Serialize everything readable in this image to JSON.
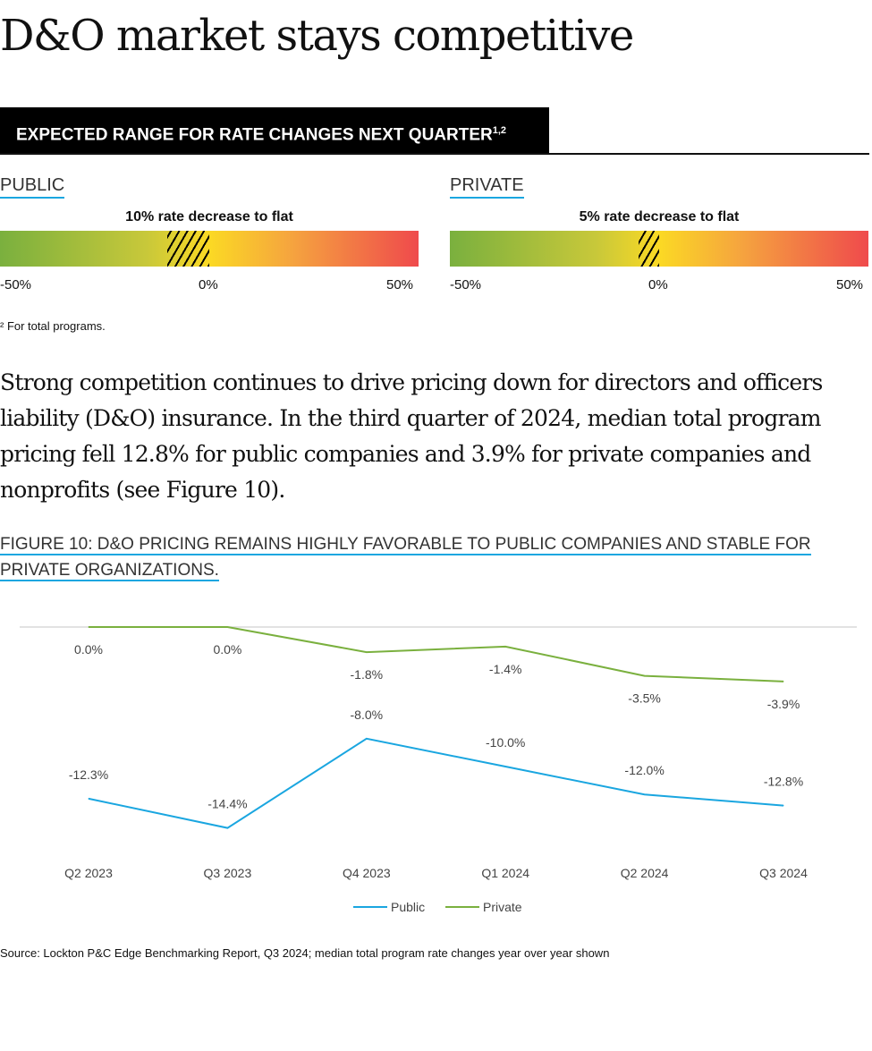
{
  "title": "D&O market stays competitive",
  "banner": {
    "text": "EXPECTED RANGE FOR RATE CHANGES NEXT QUARTER",
    "sup": "1,2"
  },
  "ranges": [
    {
      "label": "PUBLIC",
      "range_text": "10% rate decrease to flat",
      "range_from": -10,
      "range_to": 0,
      "ticks": [
        "-50%",
        "0%",
        "50%"
      ]
    },
    {
      "label": "PRIVATE",
      "range_text": "5% rate decrease to flat",
      "range_from": -5,
      "range_to": 0,
      "ticks": [
        "-50%",
        "0%",
        "50%"
      ]
    }
  ],
  "footnote": "² For total programs.",
  "body_text": "Strong competition continues to drive pricing down for directors and officers liability (D&O) insurance. In the third quarter of 2024, median total program pricing fell 12.8% for public companies and 3.9% for private companies and nonprofits (see Figure 10).",
  "figure_title": "FIGURE 10: D&O PRICING REMAINS HIGHLY FAVORABLE TO PUBLIC COMPANIES AND STABLE FOR PRIVATE ORGANIZATIONS.",
  "chart_data": {
    "type": "line",
    "categories": [
      "Q2 2023",
      "Q3 2023",
      "Q4 2023",
      "Q1 2024",
      "Q2 2024",
      "Q3 2024"
    ],
    "series": [
      {
        "name": "Public",
        "color": "#1aa6e0",
        "values": [
          -12.3,
          -14.4,
          -8.0,
          -10.0,
          -12.0,
          -12.8
        ],
        "labels": [
          "-12.3%",
          "-14.4%",
          "-8.0%",
          "-10.0%",
          "-12.0%",
          "-12.8%"
        ]
      },
      {
        "name": "Private",
        "color": "#7ab03e",
        "values": [
          0.0,
          0.0,
          -1.8,
          -1.4,
          -3.5,
          -3.9
        ],
        "labels": [
          "0.0%",
          "0.0%",
          "-1.8%",
          "-1.4%",
          "-3.5%",
          "-3.9%"
        ]
      }
    ],
    "ylim": [
      -16,
      0
    ],
    "grid": false,
    "legend": "bottom"
  },
  "source": "Source: Lockton P&C Edge Benchmarking Report, Q3 2024; median total program rate changes year over year shown"
}
